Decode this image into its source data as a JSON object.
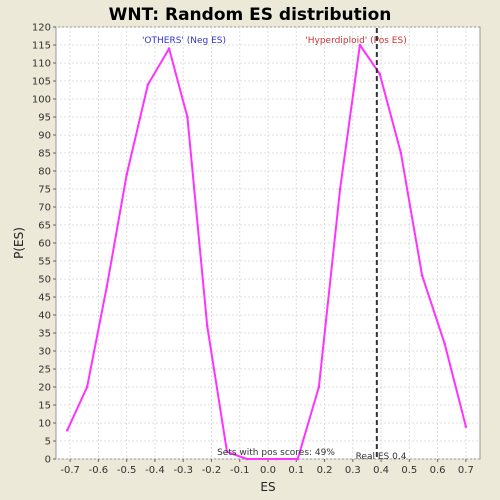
{
  "chart_data": {
    "type": "line",
    "title": "WNT: Random ES distribution",
    "xlabel": "ES",
    "ylabel": "P(ES)",
    "xlim": [
      -0.75,
      0.75
    ],
    "ylim": [
      0,
      120
    ],
    "x_ticks": [
      "-0.7",
      "-0.6",
      "-0.5",
      "-0.4",
      "-0.3",
      "-0.2",
      "-0.1",
      "0.0",
      "0.1",
      "0.2",
      "0.3",
      "0.4",
      "0.5",
      "0.6",
      "0.7"
    ],
    "y_ticks": [
      "0",
      "5",
      "10",
      "15",
      "20",
      "25",
      "30",
      "35",
      "40",
      "45",
      "50",
      "55",
      "60",
      "65",
      "70",
      "75",
      "80",
      "85",
      "90",
      "95",
      "100",
      "105",
      "110",
      "115",
      "120"
    ],
    "grid": true,
    "series": [
      {
        "color": "#ff33ff",
        "x": [
          -0.71,
          -0.64,
          -0.57,
          -0.5,
          -0.425,
          -0.35,
          -0.285,
          -0.215,
          -0.145,
          -0.075,
          0.03,
          0.105,
          0.18,
          0.255,
          0.325,
          0.395,
          0.47,
          0.545,
          0.625,
          0.7
        ],
        "y": [
          8,
          20,
          48,
          79,
          104,
          114,
          95,
          37,
          2,
          0,
          0,
          0,
          20,
          75,
          115,
          107,
          85,
          51,
          32,
          9
        ]
      }
    ],
    "annotations": {
      "neg_label": "'OTHERS' (Neg ES)",
      "pos_label": "'Hyperdiploid' (Pos ES)",
      "neg_color": "#3333cc",
      "pos_color": "#cc3333",
      "sets_text": "Sets with pos scores: 49%",
      "real_es_text": "Real ES 0.4",
      "real_es_value": 0.385
    }
  }
}
